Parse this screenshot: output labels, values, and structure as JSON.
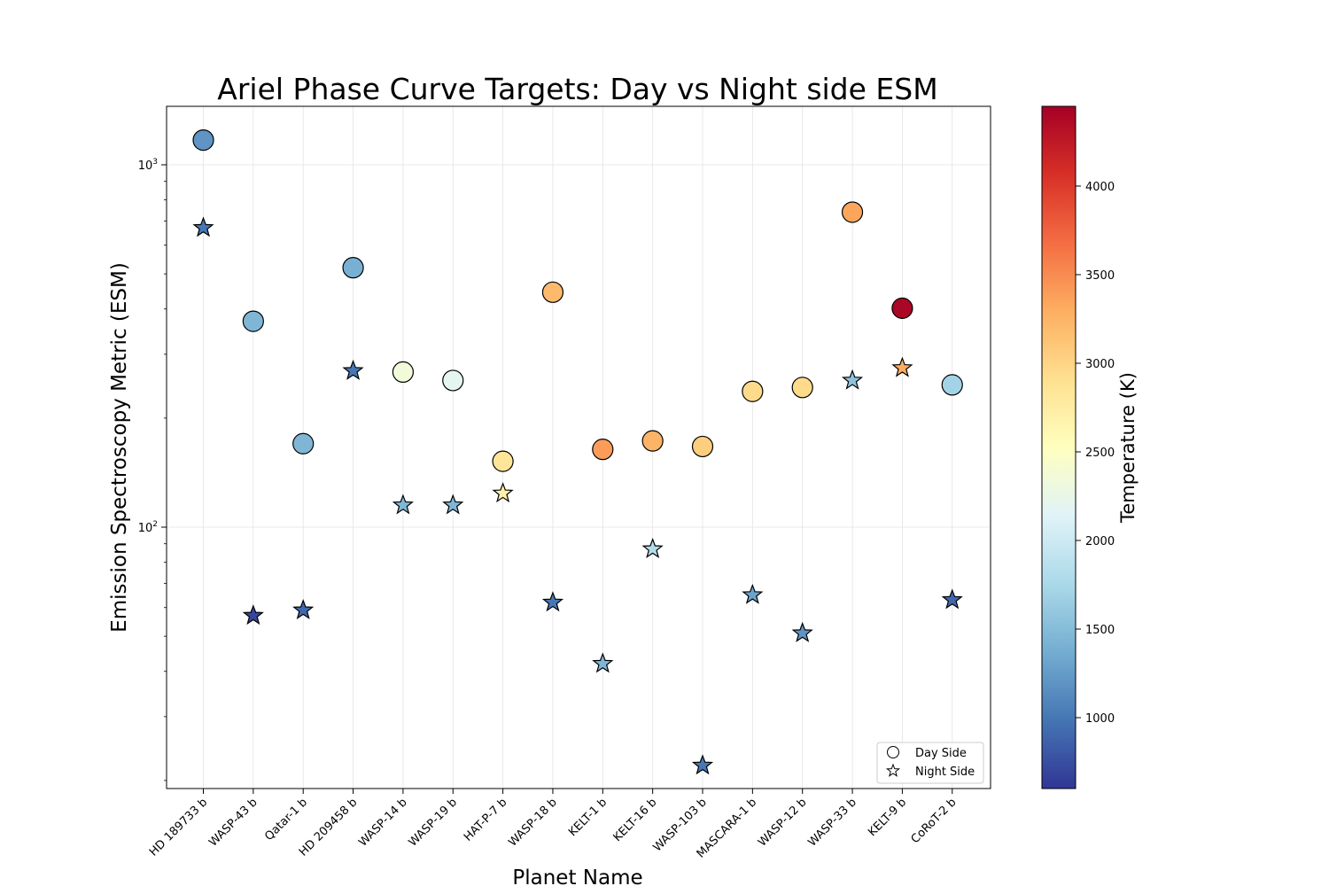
{
  "chart_data": {
    "type": "scatter",
    "title": "Ariel Phase Curve Targets: Day vs Night side ESM",
    "xlabel": "Planet Name",
    "ylabel": "Emission Spectroscopy Metric (ESM)",
    "yscale": "log",
    "ylim": [
      19,
      1450
    ],
    "yticks": [
      {
        "value": 100,
        "label": "10",
        "exp": "2"
      },
      {
        "value": 1000,
        "label": "10",
        "exp": "3"
      }
    ],
    "grid": true,
    "categories": [
      "HD 189733 b",
      "WASP-43 b",
      "Qatar-1 b",
      "HD 209458 b",
      "WASP-14 b",
      "WASP-19 b",
      "HAT-P-7 b",
      "WASP-18 b",
      "KELT-1 b",
      "KELT-16 b",
      "WASP-103 b",
      "MASCARA-1 b",
      "WASP-12 b",
      "WASP-33 b",
      "KELT-9 b",
      "CoRoT-2 b"
    ],
    "series": [
      {
        "name": "Day Side",
        "marker": "circle",
        "values": [
          1170,
          370,
          170,
          520,
          268,
          254,
          152,
          445,
          164,
          173,
          167,
          237,
          243,
          740,
          402,
          247
        ],
        "temperature": [
          1200,
          1450,
          1450,
          1400,
          2350,
          2200,
          2850,
          3200,
          3400,
          3250,
          3050,
          2950,
          2950,
          3350,
          4400,
          1700
        ]
      },
      {
        "name": "Night Side",
        "marker": "star",
        "values": [
          670,
          57,
          59,
          270,
          115,
          115,
          124,
          62,
          42,
          87,
          22,
          65,
          51,
          254,
          275,
          63
        ],
        "temperature": [
          1000,
          700,
          900,
          1000,
          1450,
          1450,
          2700,
          1000,
          1450,
          1800,
          1000,
          1300,
          1200,
          1550,
          3300,
          900
        ]
      }
    ],
    "colorbar": {
      "label": "Temperature (K)",
      "colormap": "RdYlBu_r",
      "range": [
        600,
        4450
      ],
      "ticks": [
        1000,
        1500,
        2000,
        2500,
        3000,
        3500,
        4000
      ]
    },
    "legend": {
      "placement": "lower-right",
      "entries": [
        "Day Side",
        "Night Side"
      ]
    }
  }
}
